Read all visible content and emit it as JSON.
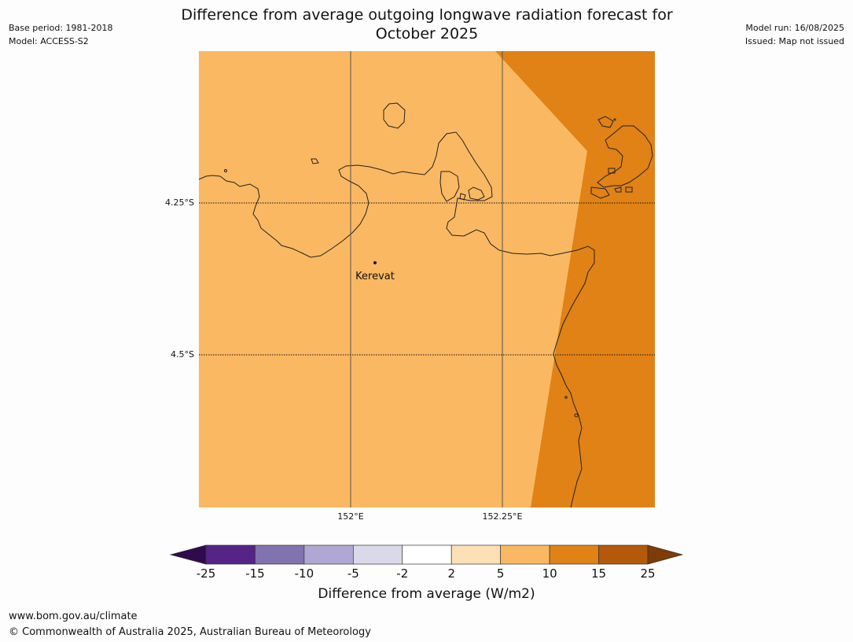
{
  "header": {
    "title_line1": "Difference from average outgoing longwave radiation forecast for",
    "title_line2": "October 2025",
    "base_period": "Base period: 1981-2018",
    "model": "Model: ACCESS-S2",
    "model_run": "Model run: 16/08/2025",
    "issued": "Issued: Map not issued"
  },
  "map": {
    "lat_labels": [
      "4.25°S",
      "4.5°S"
    ],
    "lon_labels": [
      "152°E",
      "152.25°E"
    ],
    "place": "Kerevat",
    "fill_colors": {
      "light": "#fab862",
      "dark": "#e08216"
    }
  },
  "legend": {
    "title": "Difference from average (W/m2)",
    "ticks": [
      "-25",
      "-15",
      "-10",
      "-5",
      "-2",
      "2",
      "5",
      "10",
      "15",
      "25"
    ],
    "colors": [
      "#2f0a4f",
      "#542486",
      "#8173ad",
      "#b0a8d2",
      "#d9d9ea",
      "#ffffff",
      "#fee0b6",
      "#fab862",
      "#e08216",
      "#b35909",
      "#7f3b08"
    ]
  },
  "footer": {
    "url": "www.bom.gov.au/climate",
    "copyright": "© Commonwealth of Australia 2025, Australian Bureau of Meteorology"
  }
}
